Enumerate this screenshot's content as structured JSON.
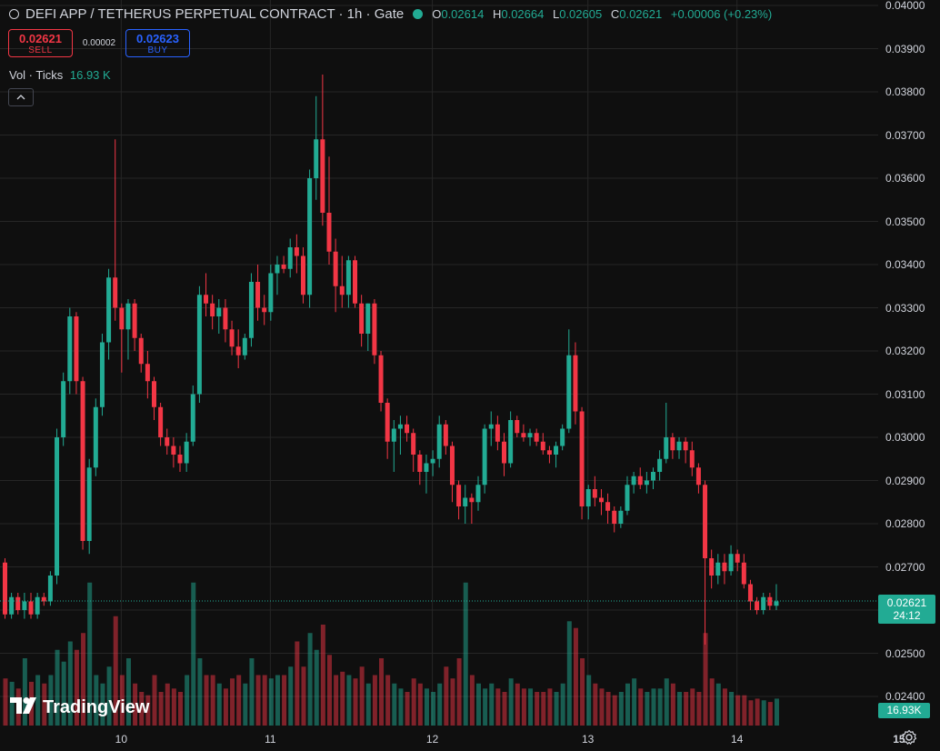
{
  "header": {
    "symbol_title": "DEFI APP / TETHERUS PERPETUAL CONTRACT · 1h · Gate",
    "ohlc": [
      {
        "key": "O",
        "value": "0.02614"
      },
      {
        "key": "H",
        "value": "0.02664"
      },
      {
        "key": "L",
        "value": "0.02605"
      },
      {
        "key": "C",
        "value": "0.02621"
      }
    ],
    "change": "+0.00006 (+0.23%)",
    "status_color": "#22ab94"
  },
  "trade": {
    "sell_price": "0.02621",
    "sell_label": "SELL",
    "spread": "0.00002",
    "buy_price": "0.02623",
    "buy_label": "BUY"
  },
  "volume_legend": {
    "label": "Vol · Ticks",
    "value": "16.93 K"
  },
  "collapse_icon": "chevron-up-icon",
  "price_axis": {
    "ticks": [
      "0.04000",
      "0.03900",
      "0.03800",
      "0.03700",
      "0.03600",
      "0.03500",
      "0.03400",
      "0.03300",
      "0.03200",
      "0.03100",
      "0.03000",
      "0.02900",
      "0.02800",
      "0.02700",
      "0.02600",
      "0.02500",
      "0.02400"
    ]
  },
  "time_axis": {
    "ticks": [
      {
        "label": "10",
        "bold": false
      },
      {
        "label": "11",
        "bold": false
      },
      {
        "label": "12",
        "bold": false
      },
      {
        "label": "13",
        "bold": false
      },
      {
        "label": "14",
        "bold": false
      },
      {
        "label": "15",
        "bold": true
      }
    ]
  },
  "last_price_badge": {
    "price": "0.02621",
    "countdown": "24:12"
  },
  "volume_badge": "16.93K",
  "logo": "TradingView",
  "colors": {
    "up": "#22ab94",
    "down": "#f23645",
    "background": "#0f0f0f",
    "grid": "#262626"
  },
  "chart_data": {
    "type": "candlestick",
    "interval": "1h",
    "ylim": [
      0.0237,
      0.04
    ],
    "last_price": 0.02621,
    "start": "Jan 09 05:00",
    "candles": [
      [
        0.0271,
        0.0272,
        0.0258,
        0.0259
      ],
      [
        0.0259,
        0.0264,
        0.0258,
        0.0263
      ],
      [
        0.0263,
        0.0264,
        0.0259,
        0.026
      ],
      [
        0.026,
        0.0264,
        0.0258,
        0.0262
      ],
      [
        0.0262,
        0.0264,
        0.0258,
        0.0259
      ],
      [
        0.0259,
        0.0264,
        0.0258,
        0.0263
      ],
      [
        0.0263,
        0.0264,
        0.0261,
        0.0262
      ],
      [
        0.0262,
        0.0269,
        0.0261,
        0.0268
      ],
      [
        0.0268,
        0.0302,
        0.0266,
        0.03
      ],
      [
        0.03,
        0.0315,
        0.0298,
        0.0313
      ],
      [
        0.0313,
        0.033,
        0.031,
        0.0328
      ],
      [
        0.0328,
        0.0329,
        0.031,
        0.0313
      ],
      [
        0.0313,
        0.0314,
        0.0274,
        0.0276
      ],
      [
        0.0276,
        0.0295,
        0.0273,
        0.0293
      ],
      [
        0.0293,
        0.0309,
        0.0291,
        0.0307
      ],
      [
        0.0307,
        0.0324,
        0.0305,
        0.0322
      ],
      [
        0.0322,
        0.0339,
        0.0318,
        0.0337
      ],
      [
        0.0337,
        0.0369,
        0.0327,
        0.033
      ],
      [
        0.033,
        0.0331,
        0.0315,
        0.0325
      ],
      [
        0.0325,
        0.0332,
        0.0318,
        0.0331
      ],
      [
        0.0331,
        0.0332,
        0.032,
        0.0323
      ],
      [
        0.0323,
        0.0324,
        0.0315,
        0.0317
      ],
      [
        0.0317,
        0.032,
        0.0309,
        0.0313
      ],
      [
        0.0313,
        0.0314,
        0.0304,
        0.0307
      ],
      [
        0.0307,
        0.0308,
        0.0298,
        0.03
      ],
      [
        0.03,
        0.0302,
        0.0296,
        0.0298
      ],
      [
        0.0298,
        0.03,
        0.0293,
        0.0296
      ],
      [
        0.0296,
        0.0298,
        0.0292,
        0.0294
      ],
      [
        0.0294,
        0.0301,
        0.0292,
        0.0299
      ],
      [
        0.0299,
        0.0312,
        0.0298,
        0.031
      ],
      [
        0.031,
        0.0335,
        0.0308,
        0.0333
      ],
      [
        0.0333,
        0.0338,
        0.0328,
        0.0331
      ],
      [
        0.0331,
        0.0333,
        0.0325,
        0.0328
      ],
      [
        0.0328,
        0.0332,
        0.0324,
        0.033
      ],
      [
        0.033,
        0.0332,
        0.0322,
        0.0325
      ],
      [
        0.0325,
        0.0327,
        0.0319,
        0.0321
      ],
      [
        0.0321,
        0.0325,
        0.0316,
        0.0319
      ],
      [
        0.0319,
        0.0324,
        0.0318,
        0.0323
      ],
      [
        0.0323,
        0.0338,
        0.0321,
        0.0336
      ],
      [
        0.0336,
        0.034,
        0.0327,
        0.033
      ],
      [
        0.033,
        0.0333,
        0.0326,
        0.0329
      ],
      [
        0.0329,
        0.034,
        0.0327,
        0.0338
      ],
      [
        0.0338,
        0.0342,
        0.0333,
        0.034
      ],
      [
        0.034,
        0.0342,
        0.0338,
        0.0339
      ],
      [
        0.0339,
        0.0346,
        0.0337,
        0.0344
      ],
      [
        0.0344,
        0.0347,
        0.0338,
        0.0342
      ],
      [
        0.0342,
        0.0344,
        0.0331,
        0.0333
      ],
      [
        0.0333,
        0.0362,
        0.033,
        0.036
      ],
      [
        0.036,
        0.0379,
        0.0355,
        0.0369
      ],
      [
        0.0369,
        0.0384,
        0.0349,
        0.0352
      ],
      [
        0.0352,
        0.0365,
        0.034,
        0.0343
      ],
      [
        0.0343,
        0.0346,
        0.0329,
        0.0335
      ],
      [
        0.0335,
        0.0342,
        0.033,
        0.0333
      ],
      [
        0.0333,
        0.0342,
        0.033,
        0.0341
      ],
      [
        0.0341,
        0.0342,
        0.033,
        0.0331
      ],
      [
        0.0331,
        0.0333,
        0.0321,
        0.0324
      ],
      [
        0.0324,
        0.0331,
        0.032,
        0.0331
      ],
      [
        0.0331,
        0.0332,
        0.0317,
        0.0319
      ],
      [
        0.0319,
        0.032,
        0.0306,
        0.0308
      ],
      [
        0.0308,
        0.0309,
        0.0295,
        0.0299
      ],
      [
        0.0299,
        0.0304,
        0.0292,
        0.0302
      ],
      [
        0.0302,
        0.0305,
        0.0296,
        0.0303
      ],
      [
        0.0303,
        0.0305,
        0.0299,
        0.0301
      ],
      [
        0.0301,
        0.0302,
        0.0292,
        0.0296
      ],
      [
        0.0296,
        0.0297,
        0.0289,
        0.0292
      ],
      [
        0.0292,
        0.0296,
        0.0287,
        0.0294
      ],
      [
        0.0294,
        0.0297,
        0.0291,
        0.0295
      ],
      [
        0.0295,
        0.0305,
        0.0293,
        0.0303
      ],
      [
        0.0303,
        0.0304,
        0.0296,
        0.0298
      ],
      [
        0.0298,
        0.0299,
        0.0285,
        0.0289
      ],
      [
        0.0289,
        0.029,
        0.0281,
        0.0284
      ],
      [
        0.0284,
        0.0289,
        0.028,
        0.0286
      ],
      [
        0.0286,
        0.0287,
        0.028,
        0.0285
      ],
      [
        0.0285,
        0.0291,
        0.0283,
        0.0289
      ],
      [
        0.0289,
        0.0303,
        0.0287,
        0.0302
      ],
      [
        0.0302,
        0.0306,
        0.0298,
        0.0303
      ],
      [
        0.0303,
        0.0305,
        0.0297,
        0.0299
      ],
      [
        0.0299,
        0.0301,
        0.0291,
        0.0294
      ],
      [
        0.0294,
        0.0306,
        0.0293,
        0.0304
      ],
      [
        0.0304,
        0.0305,
        0.03,
        0.0301
      ],
      [
        0.0301,
        0.0303,
        0.0299,
        0.03
      ],
      [
        0.03,
        0.0302,
        0.0298,
        0.0301
      ],
      [
        0.0301,
        0.0302,
        0.0298,
        0.0299
      ],
      [
        0.0299,
        0.0301,
        0.0296,
        0.0297
      ],
      [
        0.0297,
        0.0298,
        0.0294,
        0.0296
      ],
      [
        0.0296,
        0.0299,
        0.0293,
        0.0298
      ],
      [
        0.0298,
        0.0303,
        0.0297,
        0.0302
      ],
      [
        0.0302,
        0.0325,
        0.0301,
        0.0319
      ],
      [
        0.0319,
        0.0322,
        0.0303,
        0.0306
      ],
      [
        0.0306,
        0.0307,
        0.0281,
        0.0284
      ],
      [
        0.0284,
        0.0289,
        0.0281,
        0.0288
      ],
      [
        0.0288,
        0.0291,
        0.0284,
        0.0286
      ],
      [
        0.0286,
        0.0288,
        0.0282,
        0.0285
      ],
      [
        0.0285,
        0.0287,
        0.028,
        0.0283
      ],
      [
        0.0283,
        0.0284,
        0.0278,
        0.028
      ],
      [
        0.028,
        0.0284,
        0.0279,
        0.0283
      ],
      [
        0.0283,
        0.0291,
        0.0282,
        0.0289
      ],
      [
        0.0289,
        0.0292,
        0.0287,
        0.0291
      ],
      [
        0.0291,
        0.0293,
        0.0288,
        0.0289
      ],
      [
        0.0289,
        0.0292,
        0.0287,
        0.029
      ],
      [
        0.029,
        0.0293,
        0.0288,
        0.0292
      ],
      [
        0.0292,
        0.0297,
        0.029,
        0.0295
      ],
      [
        0.0295,
        0.0308,
        0.0294,
        0.03
      ],
      [
        0.03,
        0.0301,
        0.0295,
        0.0297
      ],
      [
        0.0297,
        0.03,
        0.0295,
        0.0299
      ],
      [
        0.0299,
        0.03,
        0.0294,
        0.0297
      ],
      [
        0.0297,
        0.0299,
        0.0291,
        0.0293
      ],
      [
        0.0293,
        0.0294,
        0.0287,
        0.0289
      ],
      [
        0.0289,
        0.029,
        0.0252,
        0.0272
      ],
      [
        0.0272,
        0.0274,
        0.0265,
        0.0268
      ],
      [
        0.0268,
        0.0273,
        0.0266,
        0.0271
      ],
      [
        0.0271,
        0.0273,
        0.0266,
        0.0269
      ],
      [
        0.0269,
        0.0275,
        0.0268,
        0.0273
      ],
      [
        0.0273,
        0.0274,
        0.0269,
        0.0271
      ],
      [
        0.0271,
        0.0273,
        0.0265,
        0.0266
      ],
      [
        0.0266,
        0.0267,
        0.026,
        0.0262
      ],
      [
        0.0262,
        0.0263,
        0.0259,
        0.026
      ],
      [
        0.026,
        0.0264,
        0.0259,
        0.0263
      ],
      [
        0.0263,
        0.0264,
        0.026,
        0.0261
      ],
      [
        0.0261,
        0.0266,
        0.026,
        0.0262
      ]
    ],
    "volumes": [
      0.28,
      0.26,
      0.22,
      0.4,
      0.26,
      0.3,
      0.25,
      0.3,
      0.45,
      0.38,
      0.5,
      0.45,
      0.55,
      0.85,
      0.3,
      0.25,
      0.35,
      0.65,
      0.3,
      0.4,
      0.25,
      0.2,
      0.18,
      0.3,
      0.2,
      0.25,
      0.22,
      0.2,
      0.3,
      0.85,
      0.4,
      0.3,
      0.3,
      0.25,
      0.22,
      0.28,
      0.3,
      0.25,
      0.4,
      0.3,
      0.3,
      0.28,
      0.3,
      0.3,
      0.35,
      0.5,
      0.35,
      0.55,
      0.45,
      0.6,
      0.42,
      0.3,
      0.32,
      0.3,
      0.28,
      0.35,
      0.25,
      0.3,
      0.4,
      0.3,
      0.25,
      0.22,
      0.2,
      0.28,
      0.25,
      0.22,
      0.2,
      0.25,
      0.35,
      0.28,
      0.4,
      0.85,
      0.3,
      0.25,
      0.22,
      0.25,
      0.22,
      0.2,
      0.28,
      0.25,
      0.22,
      0.22,
      0.2,
      0.2,
      0.22,
      0.2,
      0.25,
      0.62,
      0.58,
      0.4,
      0.3,
      0.25,
      0.22,
      0.2,
      0.18,
      0.2,
      0.25,
      0.28,
      0.22,
      0.2,
      0.22,
      0.22,
      0.28,
      0.25,
      0.2,
      0.2,
      0.22,
      0.2,
      0.55,
      0.28,
      0.25,
      0.22,
      0.2,
      0.18,
      0.18,
      0.15,
      0.16,
      0.15,
      0.14,
      0.16
    ]
  }
}
